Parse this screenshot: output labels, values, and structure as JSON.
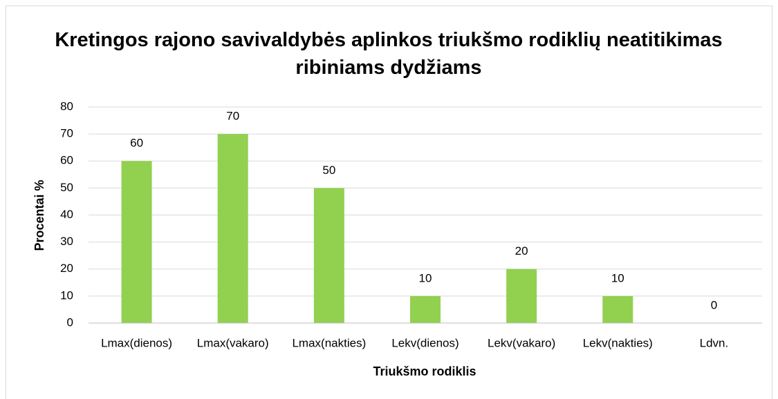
{
  "chart_data": {
    "type": "bar",
    "title": "Kretingos rajono savivaldybės aplinkos triukšmo rodiklių neatitikimas ribiniams dydžiams",
    "xlabel": "Triukšmo rodiklis",
    "ylabel": "Procentai %",
    "categories": [
      "Lmax(dienos)",
      "Lmax(vakaro)",
      "Lmax(nakties)",
      "Lekv(dienos)",
      "Lekv(vakaro)",
      "Lekv(nakties)",
      "Ldvn."
    ],
    "values": [
      60,
      70,
      50,
      10,
      20,
      10,
      0
    ],
    "color": "#92d050",
    "ylim": [
      0,
      80
    ],
    "yticks": [
      0,
      10,
      20,
      30,
      40,
      50,
      60,
      70,
      80
    ],
    "grid": true
  }
}
